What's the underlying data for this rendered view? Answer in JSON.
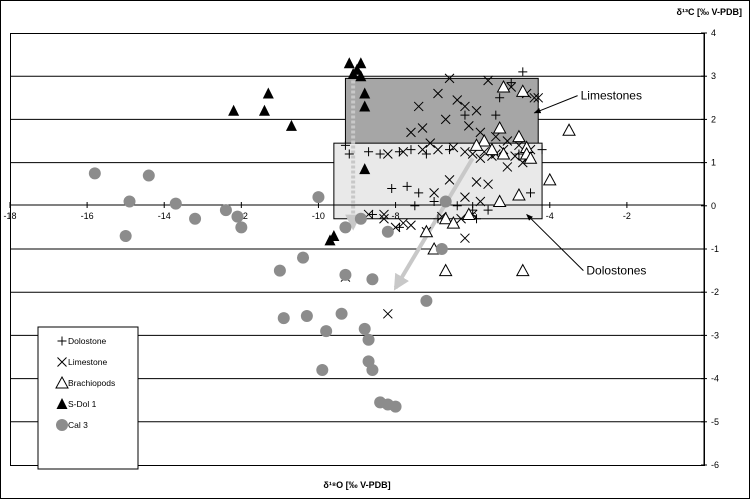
{
  "chart_data": {
    "type": "scatter",
    "title": "",
    "xlabel": "δ¹⁸O [‰ V-PDB]",
    "ylabel": "δ¹³C [‰ V-PDB]",
    "xlim": [
      -18,
      0
    ],
    "ylim": [
      -6,
      4
    ],
    "x_ticks": [
      "-18",
      "-16",
      "-14",
      "-12",
      "-10",
      "-8",
      "-6",
      "-4",
      "-2"
    ],
    "x_tick_values": [
      -18,
      -16,
      -14,
      -12,
      -10,
      -8,
      -6,
      -4,
      -2
    ],
    "y_ticks": [
      "4",
      "3",
      "2",
      "1",
      "0",
      "-1",
      "-2",
      "-3",
      "-4",
      "-5",
      "-6"
    ],
    "y_tick_values": [
      4,
      3,
      2,
      1,
      0,
      -1,
      -2,
      -3,
      -4,
      -5,
      -6
    ],
    "grid": "horizontal",
    "legend_position": "bottom-left",
    "colors": {
      "dark_box": "#a6a6a6",
      "light_box": "#e9e9e9",
      "arrow": "#c8c8c8",
      "cal3": "#8c8c8c",
      "ink": "#000000"
    },
    "regions": [
      {
        "label": "Limestones",
        "x": [
          -9.3,
          -4.3
        ],
        "y": [
          1.0,
          2.95
        ],
        "shade": "dark"
      },
      {
        "label": "Dolostones",
        "x": [
          -9.6,
          -4.2
        ],
        "y": [
          -0.3,
          1.45
        ],
        "shade": "light"
      }
    ],
    "annotations": [
      {
        "text": "Limestones",
        "x": -3.2,
        "y": 2.55,
        "arrow_to": [
          -4.4,
          2.15
        ]
      },
      {
        "text": "Dolostones",
        "x": -3.05,
        "y": -1.5,
        "arrow_to": [
          -4.6,
          -0.2
        ]
      }
    ],
    "trend_arrows": [
      {
        "style": "dotted",
        "from": [
          -9.1,
          2.9
        ],
        "to": [
          -9.1,
          -0.5
        ]
      },
      {
        "style": "solid",
        "from": [
          -6.0,
          1.1
        ],
        "to": [
          -8.0,
          -1.9
        ]
      }
    ],
    "series": [
      {
        "name": "Dolostone",
        "marker": "plus",
        "x": [
          -4.7,
          -5.0,
          -5.3,
          -5.4,
          -6.2,
          -6.6,
          -7.2,
          -7.6,
          -7.9,
          -8.4,
          -8.7,
          -9.3,
          -9.2,
          -8.1,
          -7.7,
          -7.4,
          -7.0,
          -6.4,
          -6.0,
          -5.6,
          -4.8,
          -4.2,
          -4.5,
          -7.5,
          -8.6,
          -5.9,
          -7.9,
          -6.9
        ],
        "y": [
          3.1,
          2.85,
          2.5,
          2.1,
          2.1,
          1.3,
          1.2,
          1.3,
          1.25,
          1.2,
          1.25,
          1.4,
          1.2,
          0.4,
          0.45,
          0.3,
          0.1,
          0.0,
          -0.1,
          -0.1,
          1.2,
          1.3,
          0.3,
          0.0,
          -0.2,
          -0.3,
          -0.5,
          -0.3
        ]
      },
      {
        "name": "Limestone",
        "marker": "x",
        "x": [
          -6.6,
          -5.6,
          -5.0,
          -4.6,
          -4.4,
          -4.3,
          -6.9,
          -6.4,
          -6.2,
          -5.9,
          -7.4,
          -7.3,
          -6.7,
          -6.1,
          -5.8,
          -5.4,
          -5.1,
          -4.8,
          -4.5,
          -7.6,
          -7.1,
          -6.9,
          -6.5,
          -6.0,
          -5.7,
          -5.4,
          -5.2,
          -4.9,
          -4.6,
          -8.2,
          -7.8,
          -7.3,
          -6.2,
          -5.8,
          -5.5,
          -5.1,
          -4.7,
          -6.6,
          -5.9,
          -5.6,
          -7.0,
          -6.2,
          -5.8,
          -8.7,
          -8.3,
          -7.8,
          -6.8,
          -6.3,
          -6.0,
          -8.0,
          -7.6,
          -7.2,
          -6.2,
          -8.3,
          -9.3,
          -8.2
        ],
        "y": [
          2.95,
          2.9,
          2.75,
          2.6,
          2.5,
          2.5,
          2.6,
          2.45,
          2.3,
          2.2,
          2.3,
          1.8,
          2.0,
          1.85,
          1.7,
          1.6,
          1.5,
          1.4,
          1.3,
          1.7,
          1.45,
          1.3,
          1.35,
          1.2,
          1.25,
          1.2,
          1.3,
          1.15,
          1.1,
          1.2,
          1.25,
          1.3,
          1.25,
          1.1,
          1.15,
          0.9,
          1.0,
          0.6,
          0.55,
          0.5,
          0.3,
          0.2,
          0.1,
          -0.2,
          -0.3,
          -0.4,
          -0.25,
          -0.3,
          -0.2,
          -0.5,
          -0.45,
          -0.6,
          -0.75,
          -0.2,
          -1.65,
          -2.5
        ]
      },
      {
        "name": "Brachiopods",
        "marker": "triangle-open",
        "x": [
          -5.2,
          -4.7,
          -3.5,
          -5.7,
          -5.3,
          -4.8,
          -4.6,
          -5.9,
          -5.5,
          -5.2,
          -4.6,
          -4.5,
          -4.0,
          -4.8,
          -5.3,
          -6.7,
          -7.2,
          -7.0,
          -6.5,
          -6.1,
          -6.7,
          -4.7
        ],
        "y": [
          2.75,
          2.65,
          1.75,
          1.5,
          1.8,
          1.6,
          1.35,
          1.4,
          1.3,
          1.2,
          1.2,
          1.1,
          0.6,
          0.25,
          0.1,
          -0.3,
          -0.6,
          -1.0,
          -0.4,
          -0.2,
          -1.5,
          -1.5
        ]
      },
      {
        "name": "S-Dol 1",
        "marker": "triangle-filled",
        "x": [
          -9.2,
          -9.0,
          -8.9,
          -9.1,
          -8.9,
          -8.8,
          -12.2,
          -11.3,
          -11.4,
          -10.7,
          -8.8,
          -8.8,
          -9.6,
          -9.7
        ],
        "y": [
          3.3,
          3.15,
          3.3,
          3.05,
          3.0,
          2.6,
          2.2,
          2.6,
          2.2,
          1.85,
          2.3,
          0.85,
          -0.7,
          -0.8
        ]
      },
      {
        "name": "Cal 3",
        "marker": "circle",
        "x": [
          -15.8,
          -14.4,
          -14.9,
          -13.7,
          -13.2,
          -12.4,
          -12.1,
          -12.0,
          -15.0,
          -10.0,
          -10.4,
          -11.0,
          -9.3,
          -8.9,
          -8.2,
          -8.6,
          -9.3,
          -7.2,
          -6.7,
          -6.8,
          -9.4,
          -10.3,
          -10.9,
          -9.8,
          -8.8,
          -8.7,
          -8.7,
          -8.6,
          -9.9,
          -8.4,
          -8.2,
          -8.0
        ],
        "y": [
          0.75,
          0.7,
          0.1,
          0.05,
          -0.3,
          -0.1,
          -0.25,
          -0.5,
          -0.7,
          0.2,
          -1.2,
          -1.5,
          -0.5,
          -0.3,
          -0.6,
          -1.7,
          -1.6,
          -2.2,
          0.1,
          -1.0,
          -2.5,
          -2.55,
          -2.6,
          -2.9,
          -2.85,
          -3.1,
          -3.6,
          -3.8,
          -3.8,
          -4.55,
          -4.6,
          -4.65
        ]
      }
    ]
  }
}
